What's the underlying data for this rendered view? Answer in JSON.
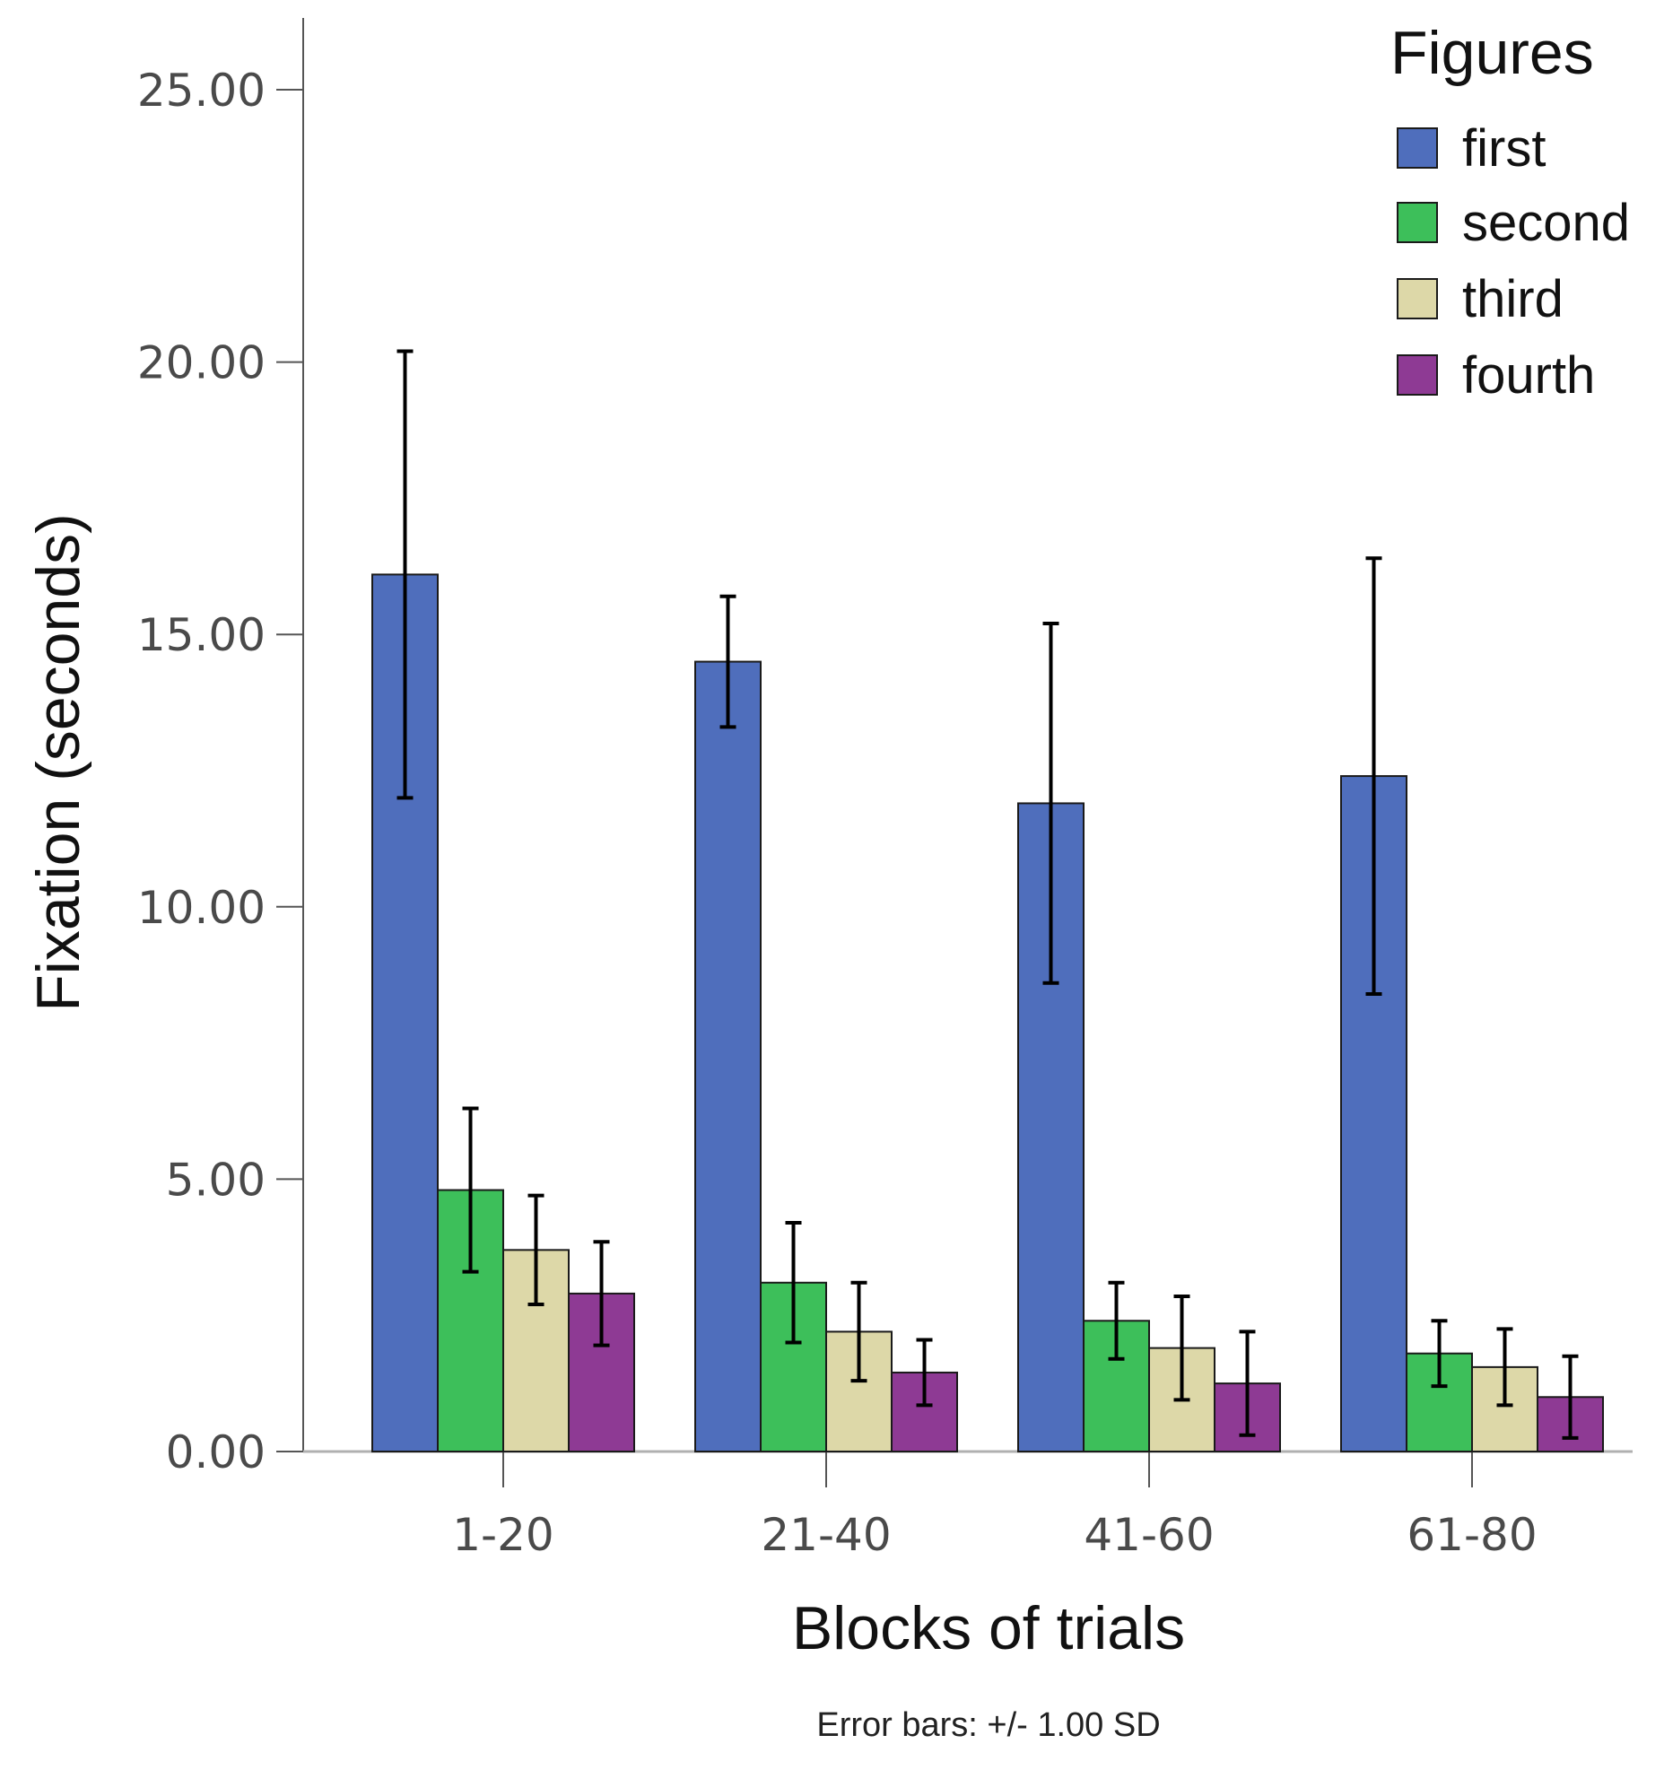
{
  "chart_data": {
    "type": "bar",
    "categories": [
      "1-20",
      "21-40",
      "41-60",
      "61-80"
    ],
    "series": [
      {
        "name": "first",
        "color": "#4f6ebc",
        "values": [
          16.1,
          14.5,
          11.9,
          12.4
        ],
        "errors": [
          4.1,
          1.2,
          3.3,
          4.0
        ]
      },
      {
        "name": "second",
        "color": "#3dbf5a",
        "values": [
          4.8,
          3.1,
          2.4,
          1.8
        ],
        "errors": [
          1.5,
          1.1,
          0.7,
          0.6
        ]
      },
      {
        "name": "third",
        "color": "#ddd8a8",
        "values": [
          3.7,
          2.2,
          1.9,
          1.55
        ],
        "errors": [
          1.0,
          0.9,
          0.95,
          0.7
        ]
      },
      {
        "name": "fourth",
        "color": "#8e3a94",
        "values": [
          2.9,
          1.45,
          1.25,
          1.0
        ],
        "errors": [
          0.95,
          0.6,
          0.95,
          0.75
        ]
      }
    ],
    "ylim": [
      0,
      26.5
    ],
    "yticks": [
      "0.00",
      "5.00",
      "10.00",
      "15.00",
      "20.00",
      "25.00"
    ],
    "ytick_values": [
      0,
      5,
      10,
      15,
      20,
      25
    ],
    "xlabel": "Blocks of trials",
    "ylabel": "Fixation (seconds)",
    "legend_title": "Figures",
    "legend_position": "top-right",
    "footnote": "Error bars: +/- 1.00 SD"
  }
}
